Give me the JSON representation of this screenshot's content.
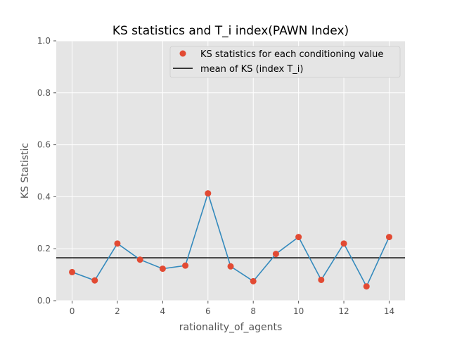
{
  "chart_data": {
    "type": "line",
    "title": "KS statistics and T_i index(PAWN Index)",
    "xlabel": "rationality_of_agents",
    "ylabel": "KS Statistic",
    "xlim": [
      -0.7,
      14.7
    ],
    "ylim": [
      0.0,
      1.0
    ],
    "x_ticks": [
      "0",
      "2",
      "4",
      "6",
      "8",
      "10",
      "12",
      "14"
    ],
    "y_ticks": [
      "0.0",
      "0.2",
      "0.4",
      "0.6",
      "0.8",
      "1.0"
    ],
    "grid": true,
    "legend_position": "top-right",
    "x": [
      0,
      1,
      2,
      3,
      4,
      5,
      6,
      7,
      8,
      9,
      10,
      11,
      12,
      13,
      14
    ],
    "series": [
      {
        "name": "KS statistics for each conditioning value",
        "mark": "point",
        "color": "#E24A33",
        "values": [
          0.11,
          0.078,
          0.22,
          0.158,
          0.123,
          0.135,
          0.413,
          0.132,
          0.075,
          0.18,
          0.245,
          0.08,
          0.22,
          0.055,
          0.245
        ]
      },
      {
        "mark": "line",
        "color": "#348ABD",
        "values": [
          0.11,
          0.078,
          0.22,
          0.158,
          0.123,
          0.135,
          0.413,
          0.132,
          0.075,
          0.18,
          0.245,
          0.08,
          0.22,
          0.055,
          0.245
        ]
      }
    ],
    "reference_line": {
      "name": "mean of KS (index T_i)",
      "value": 0.165,
      "color": "#000000"
    },
    "background_color": "#E5E5E5"
  }
}
